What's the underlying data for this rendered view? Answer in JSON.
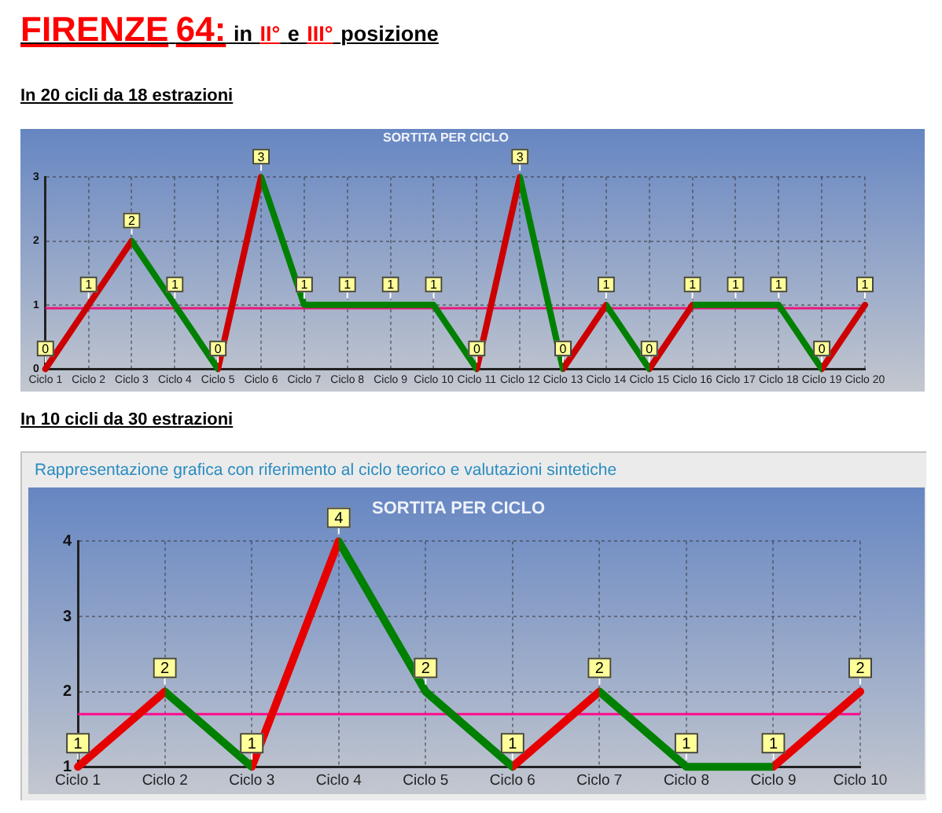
{
  "chart_data": [
    {
      "type": "line",
      "title": "SORTITA PER CICLO",
      "subtitle": "In 20 cicli da 18 estrazioni",
      "annotations": [
        "FIRENZE 64: in II° e III° posizione"
      ],
      "categories": [
        "Ciclo 1",
        "Ciclo 2",
        "Ciclo 3",
        "Ciclo 4",
        "Ciclo 5",
        "Ciclo 6",
        "Ciclo 7",
        "Ciclo 8",
        "Ciclo 9",
        "Ciclo 10",
        "Ciclo 11",
        "Ciclo 12",
        "Ciclo 13",
        "Ciclo 14",
        "Ciclo 15",
        "Ciclo 16",
        "Ciclo 17",
        "Ciclo 18",
        "Ciclo 19",
        "Ciclo 20"
      ],
      "series": [
        {
          "colors": [
            "#cc0000",
            "#cc0000",
            "#cc0000",
            "#008000",
            "#008000",
            "#cc0000",
            "#008000",
            "#008000",
            "#008000",
            "#008000",
            "#008000",
            "#cc0000",
            "#008000",
            "#cc0000",
            "#008000",
            "#cc0000",
            "#008000",
            "#008000",
            "#008000",
            "#cc0000"
          ],
          "values": [
            0,
            1,
            2,
            1,
            0,
            3,
            1,
            1,
            1,
            1,
            0,
            3,
            0,
            1,
            0,
            1,
            1,
            1,
            0,
            1
          ]
        }
      ],
      "ylim": [
        0,
        3
      ],
      "yticks": [
        0,
        1,
        2,
        3
      ],
      "grid": true,
      "marker": "none",
      "data_labels": true,
      "ref_lines": [
        {
          "axis": "y",
          "value": 0.95,
          "color": "#e8197d"
        }
      ]
    },
    {
      "type": "line",
      "title": "SORTITA PER CICLO",
      "subtitle": "In 10 cicli da 30 estrazioni",
      "annotations": [
        "Rappresentazione grafica con riferimento al ciclo teorico e valutazioni sintetiche"
      ],
      "categories": [
        "Ciclo 1",
        "Ciclo 2",
        "Ciclo 3",
        "Ciclo 4",
        "Ciclo 5",
        "Ciclo 6",
        "Ciclo 7",
        "Ciclo 8",
        "Ciclo 9",
        "Ciclo 10"
      ],
      "series": [
        {
          "colors": [
            "#e60000",
            "#e60000",
            "#008000",
            "#e60000",
            "#008000",
            "#008000",
            "#e60000",
            "#008000",
            "#008000",
            "#e60000"
          ],
          "values": [
            1,
            2,
            1,
            4,
            2,
            1,
            2,
            1,
            1,
            2
          ]
        }
      ],
      "ylim": [
        1,
        4
      ],
      "yticks": [
        1,
        2,
        3,
        4
      ],
      "grid": true,
      "marker": "none",
      "data_labels": true,
      "ref_lines": [
        {
          "axis": "y",
          "value": 1.7,
          "color": "#ff0a8c"
        }
      ]
    }
  ]
}
